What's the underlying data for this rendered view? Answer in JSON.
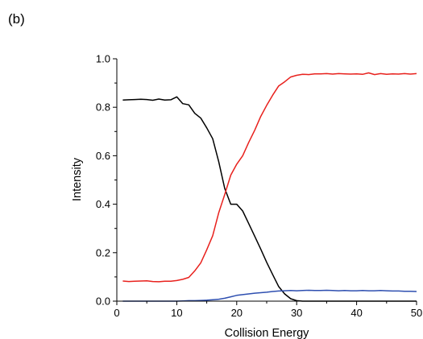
{
  "panel_label": "(b)",
  "chart_data": {
    "type": "line",
    "title": "",
    "xlabel": "Collision Energy",
    "ylabel": "Intensity",
    "xlim": [
      0,
      50
    ],
    "ylim": [
      0,
      1.0
    ],
    "x_ticks": [
      "0",
      "10",
      "20",
      "30",
      "40",
      "50"
    ],
    "y_ticks": [
      "0.0",
      "0.2",
      "0.4",
      "0.6",
      "0.8",
      "1.0"
    ],
    "grid": false,
    "legend": "none",
    "x": [
      1,
      2,
      3,
      4,
      5,
      6,
      7,
      8,
      9,
      10,
      11,
      12,
      13,
      14,
      15,
      16,
      17,
      18,
      19,
      20,
      21,
      22,
      23,
      24,
      25,
      26,
      27,
      28,
      29,
      30,
      31,
      32,
      33,
      34,
      35,
      36,
      37,
      38,
      39,
      40,
      41,
      42,
      43,
      44,
      45,
      46,
      47,
      48,
      49,
      50
    ],
    "series": [
      {
        "color": "#000000",
        "values": [
          0.83,
          0.831,
          0.832,
          0.833,
          0.832,
          0.829,
          0.834,
          0.83,
          0.831,
          0.843,
          0.815,
          0.81,
          0.775,
          0.755,
          0.715,
          0.67,
          0.575,
          0.465,
          0.4,
          0.4,
          0.372,
          0.32,
          0.268,
          0.215,
          0.16,
          0.11,
          0.06,
          0.03,
          0.01,
          0.002,
          0.0,
          0.0,
          0.0,
          0.0,
          0.0,
          0.0,
          0.0,
          0.0,
          0.0,
          0.0,
          0.0,
          0.0,
          0.0,
          0.0,
          0.0,
          0.0,
          0.0,
          0.0,
          0.0,
          0.0
        ]
      },
      {
        "color": "#e8211d",
        "values": [
          0.083,
          0.081,
          0.082,
          0.083,
          0.084,
          0.081,
          0.08,
          0.082,
          0.082,
          0.085,
          0.09,
          0.098,
          0.125,
          0.158,
          0.212,
          0.27,
          0.365,
          0.44,
          0.52,
          0.565,
          0.6,
          0.655,
          0.705,
          0.762,
          0.808,
          0.85,
          0.888,
          0.905,
          0.925,
          0.932,
          0.936,
          0.935,
          0.938,
          0.938,
          0.939,
          0.937,
          0.939,
          0.938,
          0.937,
          0.938,
          0.936,
          0.942,
          0.935,
          0.939,
          0.936,
          0.938,
          0.937,
          0.939,
          0.937,
          0.939
        ]
      },
      {
        "color": "#2e4fb0",
        "values": [
          0.0,
          0.0,
          0.0,
          0.0,
          0.0,
          0.0,
          0.0,
          0.0,
          0.0,
          0.0,
          0.001,
          0.002,
          0.002,
          0.003,
          0.004,
          0.006,
          0.008,
          0.012,
          0.018,
          0.024,
          0.027,
          0.03,
          0.033,
          0.035,
          0.037,
          0.04,
          0.042,
          0.043,
          0.044,
          0.043,
          0.044,
          0.045,
          0.044,
          0.044,
          0.045,
          0.044,
          0.043,
          0.044,
          0.043,
          0.043,
          0.044,
          0.043,
          0.043,
          0.044,
          0.043,
          0.042,
          0.042,
          0.041,
          0.041,
          0.04
        ]
      }
    ]
  }
}
